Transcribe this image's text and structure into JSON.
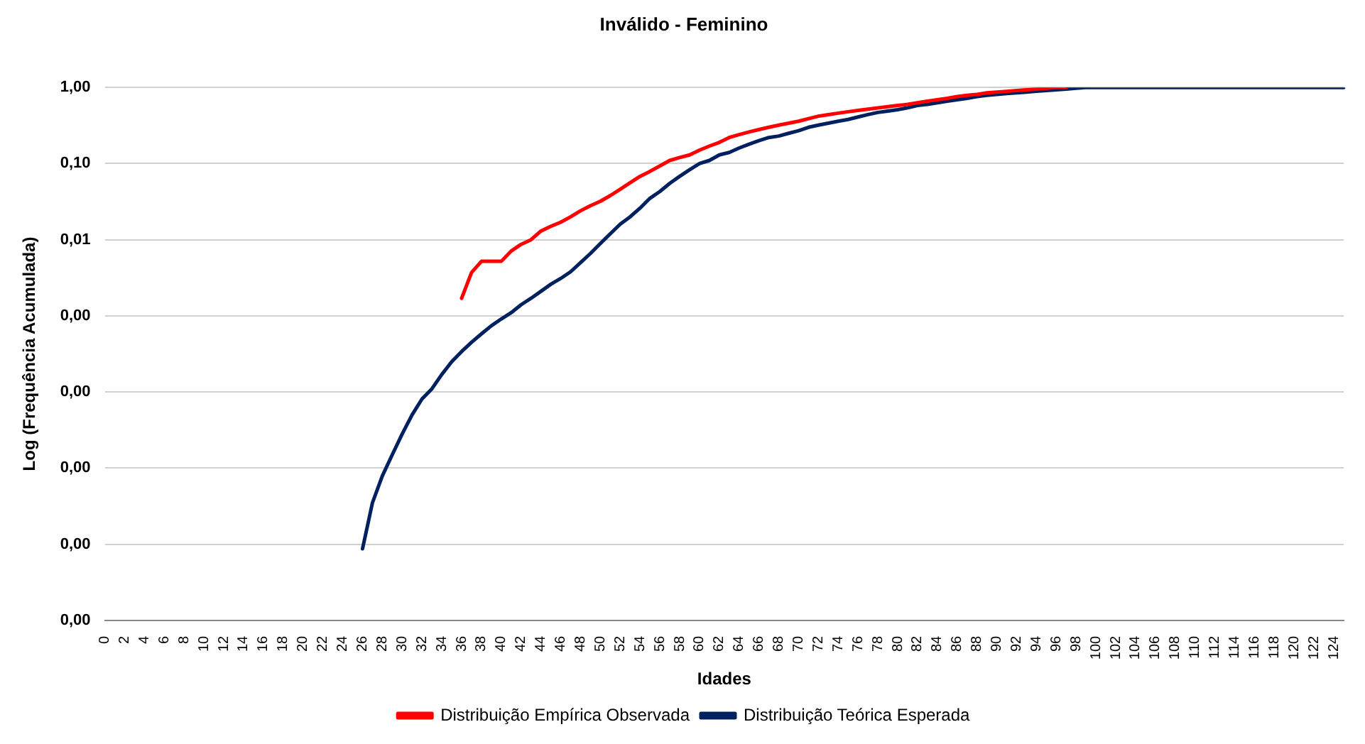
{
  "chart_data": {
    "type": "line",
    "title": "Inválido - Feminino",
    "xlabel": "Idades",
    "ylabel": "Log (Frequência Acumulada)",
    "categories": [
      "0",
      null,
      "2",
      null,
      "4",
      null,
      "6",
      null,
      "8",
      null,
      "10",
      null,
      "12",
      null,
      "14",
      null,
      "16",
      null,
      "18",
      null,
      "20",
      null,
      "22",
      null,
      "24",
      null,
      "26",
      null,
      "28",
      null,
      "30",
      null,
      "32",
      null,
      "34",
      null,
      "36",
      null,
      "38",
      null,
      "40",
      null,
      "42",
      null,
      "44",
      null,
      "46",
      null,
      "48",
      null,
      "50",
      null,
      "52",
      null,
      "54",
      null,
      "56",
      null,
      "58",
      null,
      "60",
      null,
      "62",
      null,
      "64",
      null,
      "66",
      null,
      "68",
      null,
      "70",
      null,
      "72",
      null,
      "74",
      null,
      "76",
      null,
      "78",
      null,
      "80",
      null,
      "82",
      null,
      "84",
      null,
      "86",
      null,
      "88",
      null,
      "90",
      null,
      "92",
      null,
      "94",
      null,
      "96",
      null,
      "98",
      null,
      "100",
      null,
      "102",
      null,
      "104",
      null,
      "106",
      null,
      "108",
      null,
      "110",
      null,
      "112",
      null,
      "114",
      null,
      "116",
      null,
      "118",
      null,
      "120",
      null,
      "122",
      null,
      "124",
      null
    ],
    "series": [
      {
        "name": "Distribuição Empírica Observada",
        "color": "#ff0000",
        "values": [
          null,
          null,
          null,
          null,
          null,
          null,
          null,
          null,
          null,
          null,
          null,
          null,
          null,
          null,
          null,
          null,
          null,
          null,
          null,
          null,
          null,
          null,
          null,
          null,
          null,
          null,
          null,
          null,
          null,
          null,
          null,
          null,
          null,
          null,
          null,
          null,
          0.0017,
          0.0037,
          0.0052,
          0.0052,
          0.0052,
          0.0071,
          0.0087,
          0.01,
          0.013,
          0.015,
          0.017,
          0.02,
          0.024,
          0.028,
          0.032,
          0.038,
          0.046,
          0.056,
          0.068,
          0.079,
          0.093,
          0.11,
          0.12,
          0.13,
          0.15,
          0.17,
          0.19,
          0.22,
          0.24,
          0.26,
          0.28,
          0.3,
          0.32,
          0.34,
          0.36,
          0.39,
          0.42,
          0.44,
          0.46,
          0.48,
          0.5,
          0.52,
          0.54,
          0.56,
          0.58,
          0.6,
          0.63,
          0.66,
          0.69,
          0.72,
          0.76,
          0.79,
          0.81,
          0.85,
          0.87,
          0.89,
          0.91,
          0.93,
          0.95,
          0.98,
          1,
          1,
          null,
          null,
          null,
          null,
          null,
          null,
          null,
          null,
          null,
          null,
          null,
          null,
          null,
          null,
          null,
          null,
          null,
          null,
          null,
          null,
          null,
          null,
          null,
          null,
          null,
          null,
          null,
          null
        ]
      },
      {
        "name": "Distribuição Teórica Esperada",
        "color": "#002060",
        "values": [
          null,
          null,
          null,
          null,
          null,
          null,
          null,
          null,
          null,
          null,
          null,
          null,
          null,
          null,
          null,
          null,
          null,
          null,
          null,
          null,
          null,
          null,
          null,
          null,
          null,
          null,
          8.7e-07,
          3.5e-06,
          7.9e-06,
          1.5e-05,
          2.8e-05,
          5e-05,
          8.1e-05,
          0.00011,
          0.00017,
          0.00025,
          0.00034,
          0.00045,
          0.00058,
          0.00074,
          0.00091,
          0.0011,
          0.0014,
          0.0017,
          0.0021,
          0.0026,
          0.0031,
          0.0038,
          0.005,
          0.0066,
          0.0089,
          0.012,
          0.016,
          0.02,
          0.026,
          0.035,
          0.043,
          0.055,
          0.068,
          0.083,
          0.1,
          0.11,
          0.13,
          0.14,
          0.16,
          0.18,
          0.2,
          0.22,
          0.23,
          0.25,
          0.27,
          0.3,
          0.32,
          0.34,
          0.36,
          0.38,
          0.41,
          0.44,
          0.47,
          0.49,
          0.51,
          0.54,
          0.58,
          0.6,
          0.63,
          0.66,
          0.69,
          0.72,
          0.76,
          0.79,
          0.81,
          0.83,
          0.85,
          0.87,
          0.89,
          0.91,
          0.93,
          0.95,
          0.98,
          1,
          1,
          1,
          1,
          1,
          1,
          1,
          1,
          1,
          1,
          1,
          1,
          1,
          1,
          1,
          1,
          1,
          1,
          1,
          1,
          1,
          1,
          1,
          1,
          1,
          1,
          1
        ]
      }
    ],
    "log": "y",
    "ylim": [
      1e-07,
      1
    ],
    "yticks": [
      {
        "value": 1e-07,
        "label": "0,00"
      },
      {
        "value": 1e-06,
        "label": "0,00"
      },
      {
        "value": 1e-05,
        "label": "0,00"
      },
      {
        "value": 0.0001,
        "label": "0,00"
      },
      {
        "value": 0.001,
        "label": "0,00"
      },
      {
        "value": 0.01,
        "label": "0,01"
      },
      {
        "value": 0.1,
        "label": "0,10"
      },
      {
        "value": 1,
        "label": "1,00"
      }
    ],
    "grid": "y",
    "legend": "bottom",
    "marker": "none",
    "line_style": "solid"
  }
}
